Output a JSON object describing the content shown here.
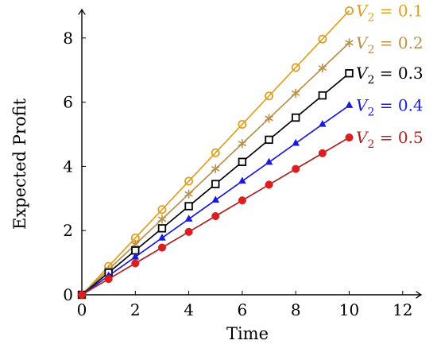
{
  "chart_data": {
    "type": "line",
    "title": "",
    "xlabel": "Time",
    "ylabel": "Expected Profit",
    "xlim": [
      0,
      13
    ],
    "ylim": [
      0,
      9
    ],
    "x_ticks": [
      "0",
      "2",
      "4",
      "6",
      "8",
      "10",
      "12"
    ],
    "y_ticks": [
      "0",
      "2",
      "4",
      "6",
      "8"
    ],
    "grid": false,
    "legend": "inline labels at line ends (right)",
    "x": [
      0,
      1,
      2,
      3,
      4,
      5,
      6,
      7,
      8,
      9,
      10
    ],
    "series": [
      {
        "name": "V2 = 0.1",
        "label_var": "V",
        "label_sub": "2",
        "label_rest": " = 0.1",
        "color": "#e0a020",
        "marker": "circle-open",
        "values": [
          0,
          0.885,
          1.77,
          2.655,
          3.54,
          4.425,
          5.31,
          6.195,
          7.08,
          7.965,
          8.85
        ]
      },
      {
        "name": "V2 = 0.2",
        "label_var": "V",
        "label_sub": "2",
        "label_rest": " = 0.2",
        "color": "#b8904a",
        "marker": "asterisk",
        "values": [
          0,
          0.785,
          1.57,
          2.355,
          3.14,
          3.925,
          4.71,
          5.495,
          6.28,
          7.065,
          7.85
        ]
      },
      {
        "name": "V2 = 0.3",
        "label_var": "V",
        "label_sub": "2",
        "label_rest": " = 0.3",
        "color": "#000000",
        "marker": "square-open",
        "values": [
          0,
          0.69,
          1.38,
          2.07,
          2.76,
          3.45,
          4.14,
          4.83,
          5.52,
          6.21,
          6.9
        ]
      },
      {
        "name": "V2 = 0.4",
        "label_var": "V",
        "label_sub": "2",
        "label_rest": " = 0.4",
        "color": "#1a1adc",
        "marker": "triangle",
        "values": [
          0,
          0.59,
          1.18,
          1.77,
          2.36,
          2.95,
          3.54,
          4.13,
          4.72,
          5.31,
          5.9
        ]
      },
      {
        "name": "V2 = 0.5",
        "label_var": "V",
        "label_sub": "2",
        "label_rest": " = 0.5",
        "color": "#b02020",
        "marker": "circle-filled",
        "marker_fill": "#dd1e1e",
        "values": [
          0,
          0.49,
          0.98,
          1.47,
          1.96,
          2.45,
          2.94,
          3.43,
          3.92,
          4.41,
          4.9
        ]
      }
    ]
  }
}
